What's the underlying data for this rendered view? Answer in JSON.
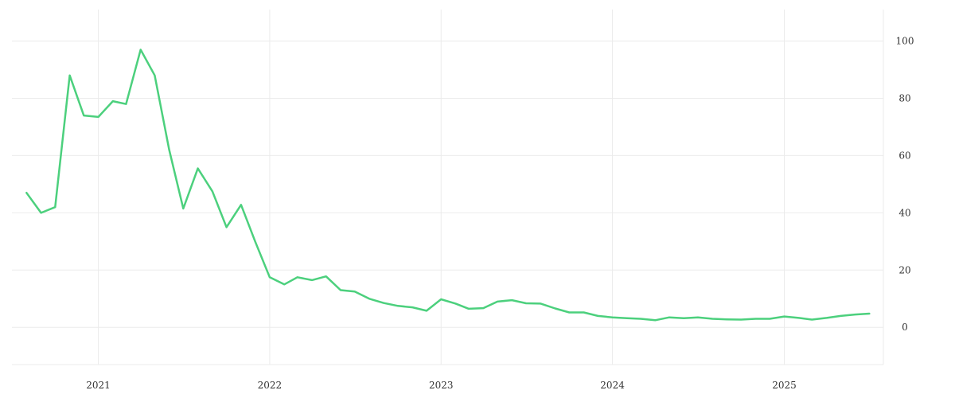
{
  "chart_data": {
    "type": "line",
    "title": "",
    "xlabel": "",
    "ylabel": "",
    "x_ticks": [
      {
        "date": "2021-01-01",
        "label": "2021"
      },
      {
        "date": "2022-01-01",
        "label": "2022"
      },
      {
        "date": "2023-01-01",
        "label": "2023"
      },
      {
        "date": "2024-01-01",
        "label": "2024"
      },
      {
        "date": "2025-01-01",
        "label": "2025"
      }
    ],
    "y_ticks": [
      0,
      20,
      40,
      60,
      80,
      100
    ],
    "xlim": [
      "2020-07-01",
      "2025-07-31"
    ],
    "ylim": [
      -13,
      111
    ],
    "y_axis_position": "right",
    "grid": true,
    "series": [
      {
        "color": "#4cd07d",
        "x": [
          "2020-08-01",
          "2020-09-01",
          "2020-10-01",
          "2020-11-01",
          "2020-12-01",
          "2021-01-01",
          "2021-02-01",
          "2021-03-01",
          "2021-04-01",
          "2021-05-01",
          "2021-06-01",
          "2021-07-01",
          "2021-08-01",
          "2021-09-01",
          "2021-10-01",
          "2021-11-01",
          "2021-12-01",
          "2022-01-01",
          "2022-02-01",
          "2022-03-01",
          "2022-04-01",
          "2022-05-01",
          "2022-06-01",
          "2022-07-01",
          "2022-08-01",
          "2022-09-01",
          "2022-10-01",
          "2022-11-01",
          "2022-12-01",
          "2023-01-01",
          "2023-02-01",
          "2023-03-01",
          "2023-04-01",
          "2023-05-01",
          "2023-06-01",
          "2023-07-01",
          "2023-08-01",
          "2023-09-01",
          "2023-10-01",
          "2023-11-01",
          "2023-12-01",
          "2024-01-01",
          "2024-02-01",
          "2024-03-01",
          "2024-04-01",
          "2024-05-01",
          "2024-06-01",
          "2024-07-01",
          "2024-08-01",
          "2024-09-01",
          "2024-10-01",
          "2024-11-01",
          "2024-12-01",
          "2025-01-01",
          "2025-02-01",
          "2025-03-01",
          "2025-04-01",
          "2025-05-01",
          "2025-06-01",
          "2025-07-01"
        ],
        "values": [
          47,
          40,
          42,
          88,
          74,
          73.5,
          79,
          78,
          97,
          88,
          62,
          41.5,
          55.5,
          47.5,
          35,
          42.8,
          30,
          17.5,
          15,
          17.5,
          16.5,
          17.8,
          13,
          12.5,
          10,
          8.5,
          7.5,
          7,
          5.8,
          9.8,
          8.3,
          6.5,
          6.7,
          9,
          9.5,
          8.4,
          8.3,
          6.6,
          5.2,
          5.2,
          4,
          3.5,
          3.2,
          3,
          2.5,
          3.5,
          3.2,
          3.5,
          3,
          2.8,
          2.7,
          3,
          3,
          3.8,
          3.3,
          2.7,
          3.3,
          4,
          4.5,
          4.8
        ]
      }
    ]
  }
}
